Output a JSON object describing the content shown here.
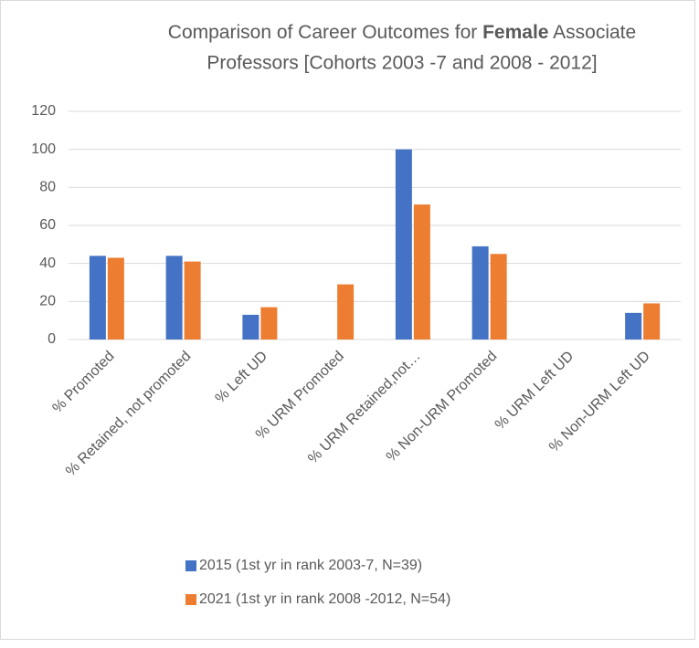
{
  "chart_data": {
    "type": "bar",
    "title": [
      "Comparison of Career Outcomes for",
      "Female",
      "Associate",
      "Professors [Cohorts 2003 -7 and 2008 - 2012]"
    ],
    "categories": [
      "% Promoted",
      "% Retained, not promoted",
      "% Left UD",
      "% URM Promoted",
      "% URM Retained,not…",
      "% Non-URM Promoted",
      "% URM Left UD",
      "% Non-URM Left UD"
    ],
    "series": [
      {
        "name": "2015 (1st yr in rank 2003-7, N=39)",
        "color": "#4472c4",
        "values": [
          44,
          44,
          13,
          null,
          100,
          49,
          null,
          14
        ]
      },
      {
        "name": "2021 (1st yr in rank 2008 -2012, N=54)",
        "color": "#ed7d31",
        "values": [
          43,
          41,
          17,
          29,
          71,
          45,
          null,
          19
        ]
      }
    ],
    "ylim": [
      0,
      120
    ],
    "yticks": [
      0,
      20,
      40,
      60,
      80,
      100,
      120
    ],
    "grid": true,
    "legend": "bottom"
  }
}
